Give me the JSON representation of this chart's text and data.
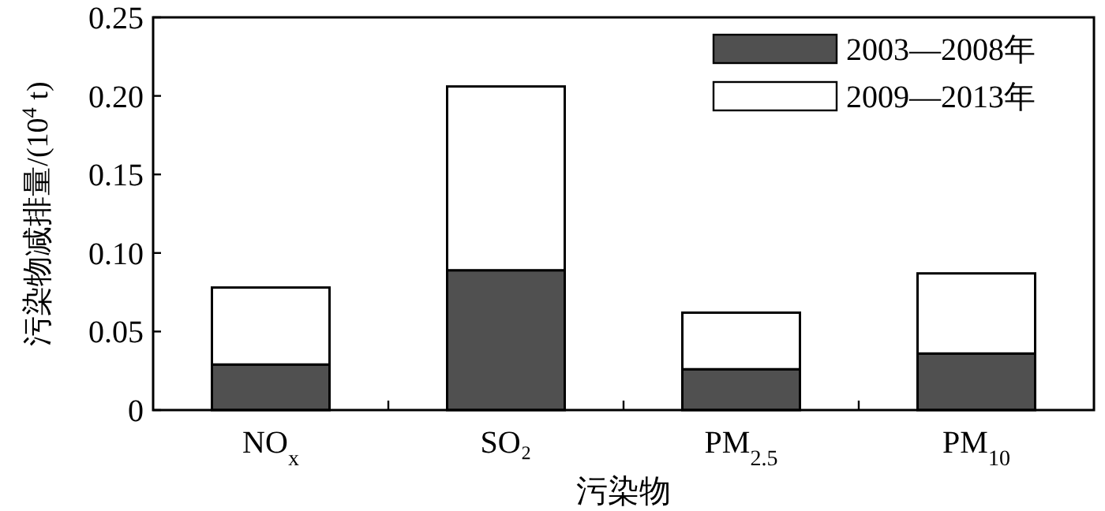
{
  "chart_data": {
    "type": "bar",
    "stacked": true,
    "xlabel": "污染物",
    "ylabel": "污染物减排量/(10$^{4}$ t)",
    "categories": [
      "NO$_{x}$",
      "SO₂",
      "PM$_{2.5}$",
      "PM$_{10}$"
    ],
    "series": [
      {
        "name": "2003—2008年",
        "color": "#505050",
        "values": [
          0.029,
          0.089,
          0.026,
          0.036
        ]
      },
      {
        "name": "2009—2013年",
        "color": "#ffffff",
        "values": [
          0.049,
          0.117,
          0.036,
          0.051
        ]
      }
    ],
    "ylim": [
      0,
      0.25
    ],
    "yticks": [
      0,
      0.05,
      {
        "value": 0.1,
        "label": "0.10"
      },
      0.15,
      {
        "value": 0.2,
        "label": "0.20"
      },
      0.25
    ],
    "grid": false,
    "legend": "top right"
  }
}
